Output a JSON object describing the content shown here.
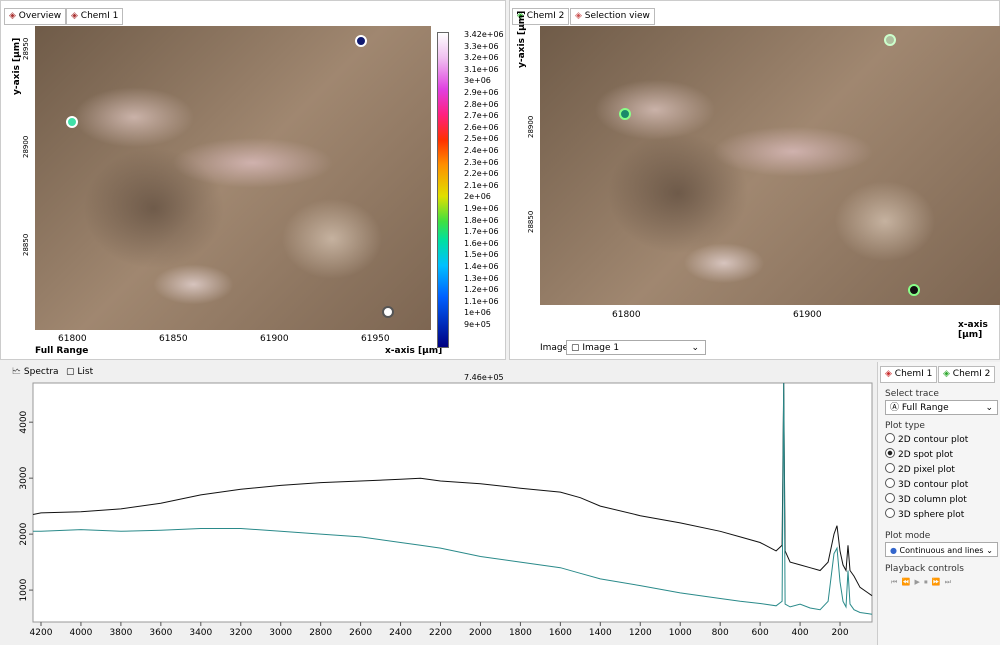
{
  "left_panel": {
    "tabs": [
      "Overview",
      "ChemI 1"
    ],
    "y_axis_label": "y-axis [µm]",
    "x_axis_label": "x-axis [µm]",
    "x_ticks": [
      61800,
      61850,
      61900,
      61950
    ],
    "y_ticks": [
      28950,
      28900,
      28850
    ],
    "trace_label": "Full Range",
    "colorbar_labels": [
      "3.42e+06",
      "3.3e+06",
      "3.2e+06",
      "3.1e+06",
      "3e+06",
      "2.9e+06",
      "2.8e+06",
      "2.7e+06",
      "2.6e+06",
      "2.5e+06",
      "2.4e+06",
      "2.3e+06",
      "2.2e+06",
      "2.1e+06",
      "2e+06",
      "1.9e+06",
      "1.8e+06",
      "1.7e+06",
      "1.6e+06",
      "1.5e+06",
      "1.4e+06",
      "1.3e+06",
      "1.2e+06",
      "1.1e+06",
      "1e+06",
      "9e+05",
      "7.46e+05"
    ]
  },
  "right_panel": {
    "tabs": [
      "ChemI 2",
      "Selection view"
    ],
    "y_axis_label": "y-axis [µm]",
    "x_axis_label": "x-axis [µm]",
    "x_ticks": [
      61800,
      61900
    ],
    "y_ticks": [
      28900,
      28850
    ],
    "image_label": "Image:",
    "image_value": "Image 1"
  },
  "bottom_tabs": [
    "Spectra",
    "List"
  ],
  "spectra": {
    "type": "line",
    "x": [
      4240,
      4200,
      4000,
      3800,
      3600,
      3400,
      3200,
      3000,
      2800,
      2600,
      2400,
      2300,
      2200,
      2000,
      1800,
      1600,
      1500,
      1400,
      1200,
      1000,
      800,
      700,
      600,
      520,
      490,
      482,
      475,
      450,
      400,
      350,
      300,
      260,
      230,
      215,
      200,
      185,
      170,
      160,
      150,
      130,
      100,
      60,
      40
    ],
    "series": [
      {
        "color": "#111111",
        "values": [
          2350,
          2380,
          2400,
          2450,
          2550,
          2700,
          2800,
          2870,
          2920,
          2950,
          2980,
          3000,
          2950,
          2900,
          2820,
          2750,
          2650,
          2500,
          2330,
          2200,
          2050,
          1950,
          1850,
          1700,
          1800,
          4700,
          1700,
          1500,
          1450,
          1400,
          1350,
          1500,
          2000,
          2150,
          1700,
          1450,
          1350,
          1800,
          1350,
          1250,
          1050,
          950,
          900
        ]
      },
      {
        "color": "#2a8a8a",
        "values": [
          2050,
          2050,
          2080,
          2050,
          2070,
          2100,
          2100,
          2050,
          2000,
          1950,
          1850,
          1800,
          1750,
          1600,
          1500,
          1400,
          1300,
          1200,
          1080,
          950,
          850,
          800,
          760,
          720,
          800,
          4700,
          750,
          700,
          750,
          680,
          650,
          800,
          1650,
          1750,
          1150,
          800,
          700,
          1350,
          750,
          650,
          600,
          580,
          570
        ]
      }
    ],
    "xlim": [
      4240,
      40
    ],
    "ylim": [
      430,
      4700
    ],
    "xticks": [
      4200,
      4000,
      3800,
      3600,
      3400,
      3200,
      3000,
      2800,
      2600,
      2400,
      2200,
      2000,
      1800,
      1600,
      1400,
      1200,
      1000,
      800,
      600,
      400,
      200
    ],
    "yticks": [
      1000,
      2000,
      3000,
      4000
    ]
  },
  "sidebar": {
    "tabs": [
      "ChemI 1",
      "ChemI 2"
    ],
    "select_trace_label": "Select trace",
    "trace_value": "Full Range",
    "plot_type_label": "Plot type",
    "plot_types": [
      "2D contour plot",
      "2D spot plot",
      "2D pixel plot",
      "3D contour plot",
      "3D column plot",
      "3D sphere plot"
    ],
    "plot_mode_label": "Plot mode",
    "plot_mode_value": "Continuous and lines",
    "playback_label": "Playback controls"
  }
}
